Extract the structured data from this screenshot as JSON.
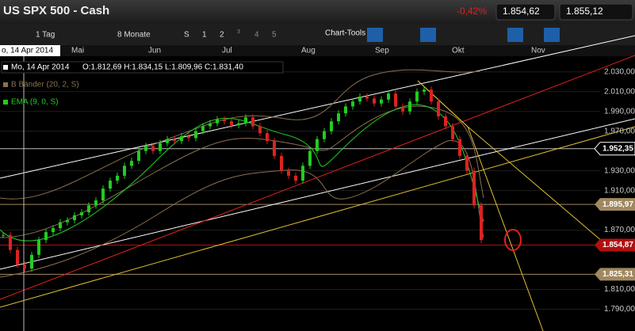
{
  "header": {
    "title": "US SPX 500 - Cash",
    "change": "-0,42%",
    "sell": "1.854,62",
    "buy": "1.855,12"
  },
  "toolbar": {
    "interval": "1 Tag",
    "range": "8 Monate",
    "s": "S",
    "one": "1",
    "two": "2",
    "three": "3",
    "four": "4",
    "five": "5",
    "tools": "Chart-Tools"
  },
  "time_axis": {
    "cursor_date": "o, 14 Apr 2014",
    "months": [
      "Mai",
      "Jun",
      "Jul",
      "Aug",
      "Sep",
      "Okt",
      "Nov"
    ]
  },
  "info": {
    "date": "Mo, 14 Apr 2014",
    "ohlc": "O:1.812,69  H:1.834,15  L:1.809,96  C:1.831,40",
    "bollinger": "B Bänder (20, 2, S)",
    "ema": "EMA (9, 0, S)"
  },
  "price_axis": {
    "ylim": [
      1768,
      2057
    ],
    "ticks": [
      {
        "value": 2030,
        "label": "2.030,00"
      },
      {
        "value": 2010,
        "label": "2.010,00"
      },
      {
        "value": 1990,
        "label": "1.990,00"
      },
      {
        "value": 1970,
        "label": "1.970,00"
      },
      {
        "value": 1930,
        "label": "1.930,00"
      },
      {
        "value": 1910,
        "label": "1.910,00"
      },
      {
        "value": 1870,
        "label": "1.870,00"
      },
      {
        "value": 1810,
        "label": "1.810,00"
      },
      {
        "value": 1790,
        "label": "1.790,00"
      }
    ],
    "tags": [
      {
        "value": 1952.35,
        "label": "1.952,35",
        "color": "#ffffff"
      },
      {
        "value": 1895.97,
        "label": "1.895,97",
        "color": "#a08860"
      },
      {
        "value": 1854.87,
        "label": "1.854,87",
        "color": "#b01010"
      },
      {
        "value": 1825.31,
        "label": "1.825,31",
        "color": "#a08860"
      }
    ]
  },
  "price": {
    "closes": [
      1865,
      1850,
      1835,
      1831,
      1845,
      1860,
      1868,
      1872,
      1878,
      1880,
      1885,
      1888,
      1895,
      1900,
      1912,
      1920,
      1925,
      1935,
      1940,
      1950,
      1955,
      1950,
      1958,
      1962,
      1960,
      1965,
      1963,
      1970,
      1975,
      1978,
      1982,
      1980,
      1976,
      1978,
      1984,
      1975,
      1968,
      1960,
      1945,
      1930,
      1925,
      1920,
      1935,
      1950,
      1962,
      1970,
      1980,
      1988,
      1995,
      2000,
      2005,
      2003,
      1998,
      2002,
      2008,
      1995,
      1990,
      2000,
      2010,
      2012,
      2000,
      1985,
      1975,
      1962,
      1945,
      1930,
      1895,
      1860
    ],
    "up_color": "#22cc22",
    "down_color": "#dd2222"
  }
}
